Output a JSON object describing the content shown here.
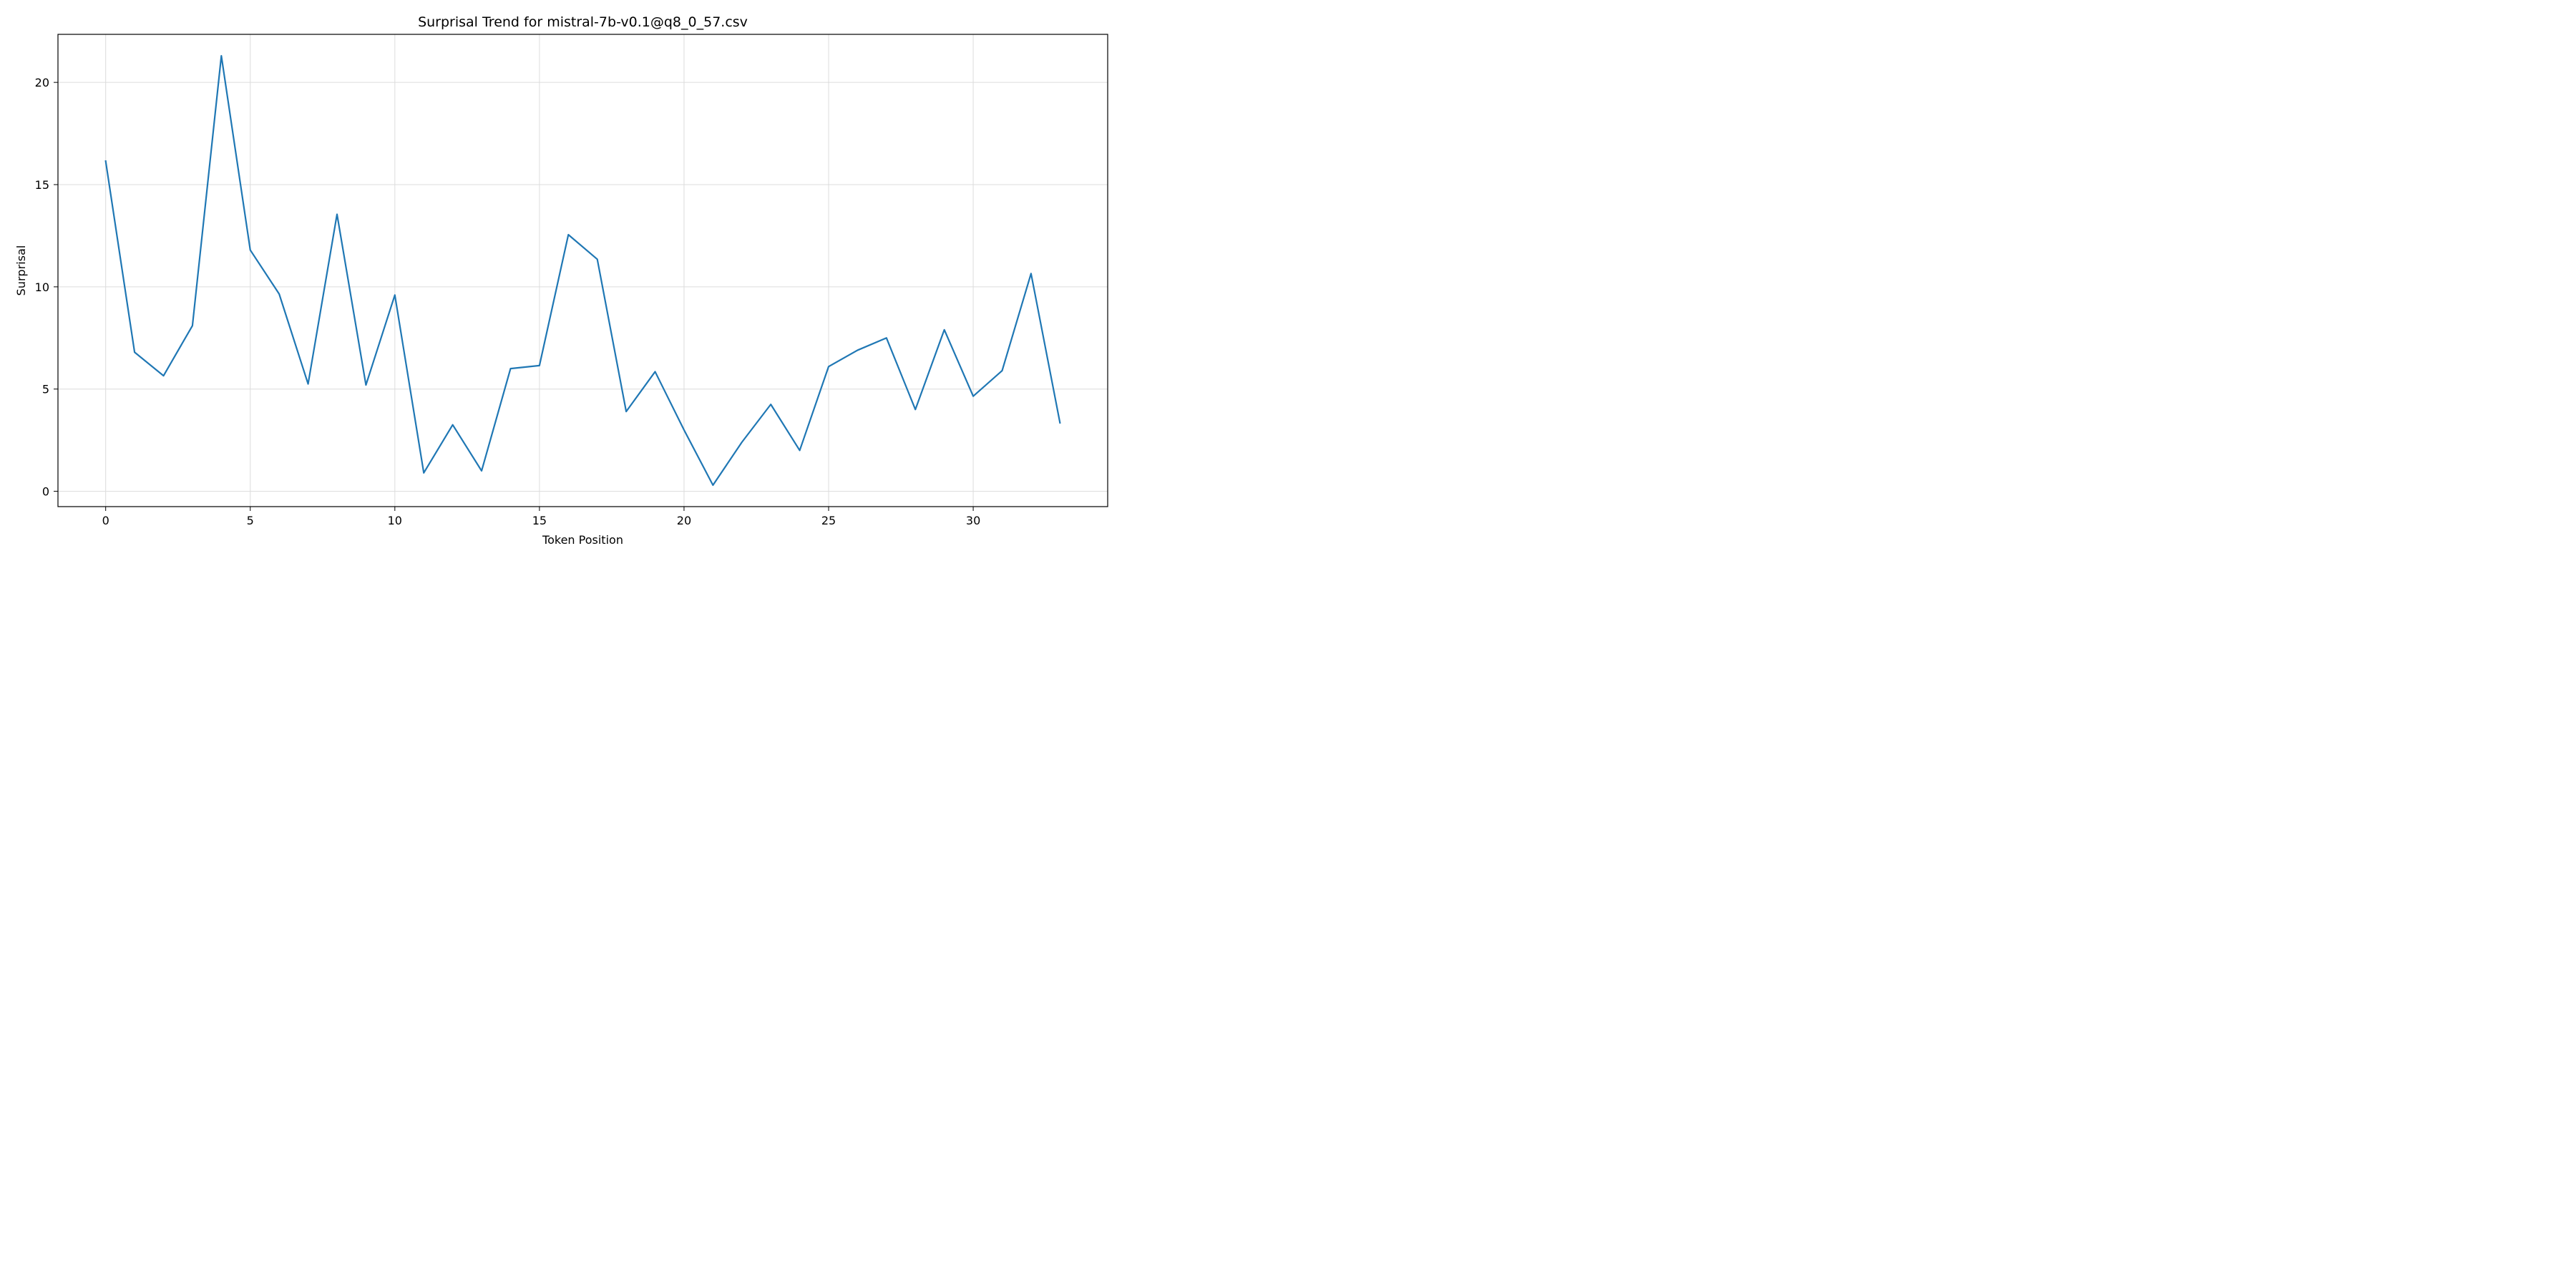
{
  "chart_data": {
    "type": "line",
    "title": "Surprisal Trend for mistral-7b-v0.1@q8_0_57.csv",
    "xlabel": "Token Position",
    "ylabel": "Surprisal",
    "xlim": [
      -1.65,
      34.65
    ],
    "ylim": [
      -0.75,
      22.35
    ],
    "xticks": [
      0,
      5,
      10,
      15,
      20,
      25,
      30
    ],
    "yticks": [
      0,
      5,
      10,
      15,
      20
    ],
    "grid": true,
    "colors": {
      "line": "#1f77b4"
    },
    "series": [
      {
        "x": [
          0,
          1,
          2,
          3,
          4,
          5,
          6,
          7,
          8,
          9,
          10,
          11,
          12,
          13,
          14,
          15,
          16,
          17,
          18,
          19,
          20,
          21,
          22,
          23,
          24,
          25,
          26,
          27,
          28,
          29,
          30,
          31,
          32,
          33
        ],
        "values": [
          16.15,
          6.8,
          5.65,
          8.1,
          21.3,
          11.8,
          9.65,
          5.25,
          13.55,
          5.2,
          9.6,
          0.9,
          3.25,
          1.0,
          6.0,
          6.15,
          12.55,
          11.35,
          3.9,
          5.85,
          3.0,
          0.3,
          2.4,
          4.25,
          2.0,
          6.1,
          6.9,
          7.5,
          4.0,
          7.9,
          4.65,
          5.9,
          10.65,
          3.35
        ]
      }
    ]
  }
}
